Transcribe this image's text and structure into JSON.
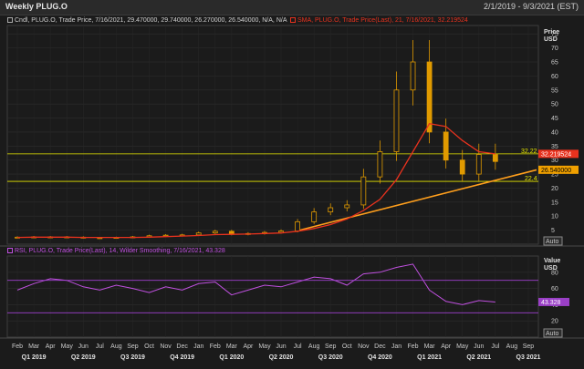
{
  "window": {
    "title": "Weekly PLUG.O",
    "date_range": "2/1/2019 - 9/3/2021 (EST)"
  },
  "price_panel": {
    "legend_candles": "Cndl, PLUG.O, Trade Price, 7/16/2021, 29.470000, 29.740000, 26.270000, 26.540000, N/A, N/A",
    "legend_sma": "SMA, PLUG.O, Trade Price(Last), 21, 7/16/2021, 32.219524",
    "axis_title": "Price",
    "axis_unit": "USD",
    "ticks": [
      "75",
      "70",
      "65",
      "60",
      "55",
      "50",
      "45",
      "40",
      "35",
      "30",
      "25",
      "20",
      "15",
      "10",
      "5"
    ],
    "hline_upper_label": "32.22",
    "hline_lower_label": "22.4",
    "sma_badge": "32.219524",
    "last_badge": "26.540000",
    "auto_label": "Auto",
    "colors": {
      "candle": "#e09a00",
      "sma": "#e8321e",
      "trend": "#ff9f1c",
      "hline": "#e8e800",
      "sma_badge": "#e8321e",
      "last_badge": "#f0a000"
    }
  },
  "rsi_panel": {
    "legend": "RSI, PLUG.O, Trade Price(Last), 14, Wilder Smoothing, 7/16/2021, 43.328",
    "axis_title": "Value",
    "axis_unit": "USD",
    "ticks": [
      "80",
      "60",
      "40",
      "20"
    ],
    "badge": "43.328",
    "auto_label": "Auto",
    "overbought": 70,
    "oversold": 30,
    "colors": {
      "line": "#c050e0",
      "levels": "#a040d0"
    }
  },
  "x_axis": {
    "months": [
      "Feb",
      "Mar",
      "Apr",
      "May",
      "Jun",
      "Jul",
      "Aug",
      "Sep",
      "Oct",
      "Nov",
      "Dec",
      "Jan",
      "Feb",
      "Mar",
      "Apr",
      "May",
      "Jun",
      "Jul",
      "Aug",
      "Sep",
      "Oct",
      "Nov",
      "Dec",
      "Jan",
      "Feb",
      "Mar",
      "Apr",
      "May",
      "Jun",
      "Jul",
      "Aug",
      "Sep"
    ],
    "quarters": [
      "Q1 2019",
      "Q2 2019",
      "Q3 2019",
      "Q4 2019",
      "Q1 2020",
      "Q2 2020",
      "Q3 2020",
      "Q4 2020",
      "Q1 2021",
      "Q2 2021",
      "Q3 2021"
    ]
  },
  "chart_data": [
    {
      "type": "line",
      "title": "Weekly PLUG.O",
      "ylabel": "Price USD",
      "ylim": [
        0,
        78
      ],
      "x": [
        "2019-02",
        "2019-03",
        "2019-04",
        "2019-05",
        "2019-06",
        "2019-07",
        "2019-08",
        "2019-09",
        "2019-10",
        "2019-11",
        "2019-12",
        "2020-01",
        "2020-02",
        "2020-03",
        "2020-04",
        "2020-05",
        "2020-06",
        "2020-07",
        "2020-08",
        "2020-09",
        "2020-10",
        "2020-11",
        "2020-12",
        "2021-01",
        "2021-02",
        "2021-03",
        "2021-04",
        "2021-05",
        "2021-06",
        "2021-07"
      ],
      "series": [
        {
          "name": "Cndl, PLUG.O, Trade Price",
          "values": [
            2.5,
            2.6,
            2.6,
            2.5,
            2.3,
            2.3,
            2.4,
            2.6,
            3.0,
            3.2,
            3.3,
            4.0,
            4.6,
            3.5,
            3.8,
            4.2,
            4.7,
            8.0,
            11.5,
            13.0,
            14.0,
            24.0,
            33.0,
            55.0,
            65.0,
            40.0,
            30.0,
            25.0,
            32.0,
            29.5
          ]
        },
        {
          "name": "SMA, PLUG.O, Trade Price(Last), 21",
          "values": [
            2.4,
            2.5,
            2.5,
            2.5,
            2.4,
            2.4,
            2.4,
            2.4,
            2.5,
            2.7,
            2.9,
            3.1,
            3.4,
            3.5,
            3.6,
            3.8,
            4.0,
            4.6,
            5.6,
            7.0,
            9.0,
            12.0,
            16.0,
            23.0,
            33.0,
            43.0,
            42.0,
            37.0,
            33.0,
            32.2
          ]
        }
      ]
    },
    {
      "type": "line",
      "title": "RSI, PLUG.O, Trade Price(Last), 14, Wilder Smoothing",
      "ylabel": "Value USD",
      "ylim": [
        0,
        100
      ],
      "x": [
        "2019-02",
        "2019-03",
        "2019-04",
        "2019-05",
        "2019-06",
        "2019-07",
        "2019-08",
        "2019-09",
        "2019-10",
        "2019-11",
        "2019-12",
        "2020-01",
        "2020-02",
        "2020-03",
        "2020-04",
        "2020-05",
        "2020-06",
        "2020-07",
        "2020-08",
        "2020-09",
        "2020-10",
        "2020-11",
        "2020-12",
        "2021-01",
        "2021-02",
        "2021-03",
        "2021-04",
        "2021-05",
        "2021-06",
        "2021-07"
      ],
      "series": [
        {
          "name": "RSI",
          "values": [
            58,
            66,
            72,
            70,
            62,
            58,
            64,
            60,
            55,
            62,
            58,
            66,
            68,
            52,
            58,
            64,
            62,
            68,
            74,
            72,
            64,
            78,
            80,
            86,
            90,
            58,
            44,
            40,
            45,
            43.3
          ]
        }
      ]
    }
  ]
}
